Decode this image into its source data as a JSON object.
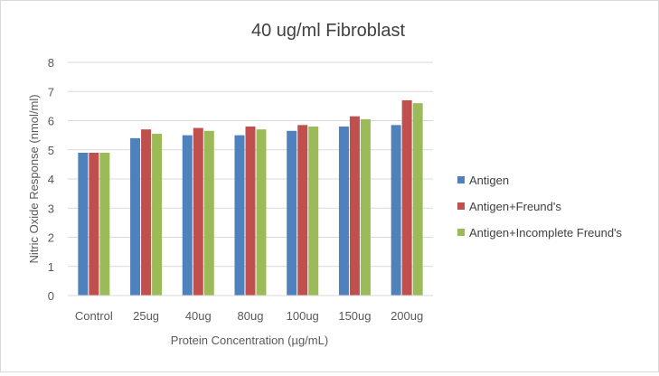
{
  "chart_data": {
    "type": "bar",
    "title": "40 ug/ml Fibroblast",
    "xlabel": "Protein Concentration (µg/mL)",
    "ylabel": "Nitric Oxide Response (nmol/ml)",
    "categories": [
      "Control",
      "25ug",
      "40ug",
      "80ug",
      "100ug",
      "150ug",
      "200ug"
    ],
    "ylim": [
      0,
      8
    ],
    "yticks": [
      0,
      1,
      2,
      3,
      4,
      5,
      6,
      7,
      8
    ],
    "grid": true,
    "legend_position": "right",
    "series": [
      {
        "name": "Antigen",
        "color": "#4f81bd",
        "values": [
          4.9,
          5.4,
          5.5,
          5.5,
          5.65,
          5.8,
          5.85
        ]
      },
      {
        "name": "Antigen+Freund's",
        "color": "#c0504d",
        "values": [
          4.9,
          5.7,
          5.75,
          5.8,
          5.85,
          6.15,
          6.7
        ]
      },
      {
        "name": "Antigen+Incomplete Freund's",
        "color": "#9bbb59",
        "values": [
          4.9,
          5.55,
          5.65,
          5.7,
          5.8,
          6.05,
          6.6
        ]
      }
    ]
  }
}
